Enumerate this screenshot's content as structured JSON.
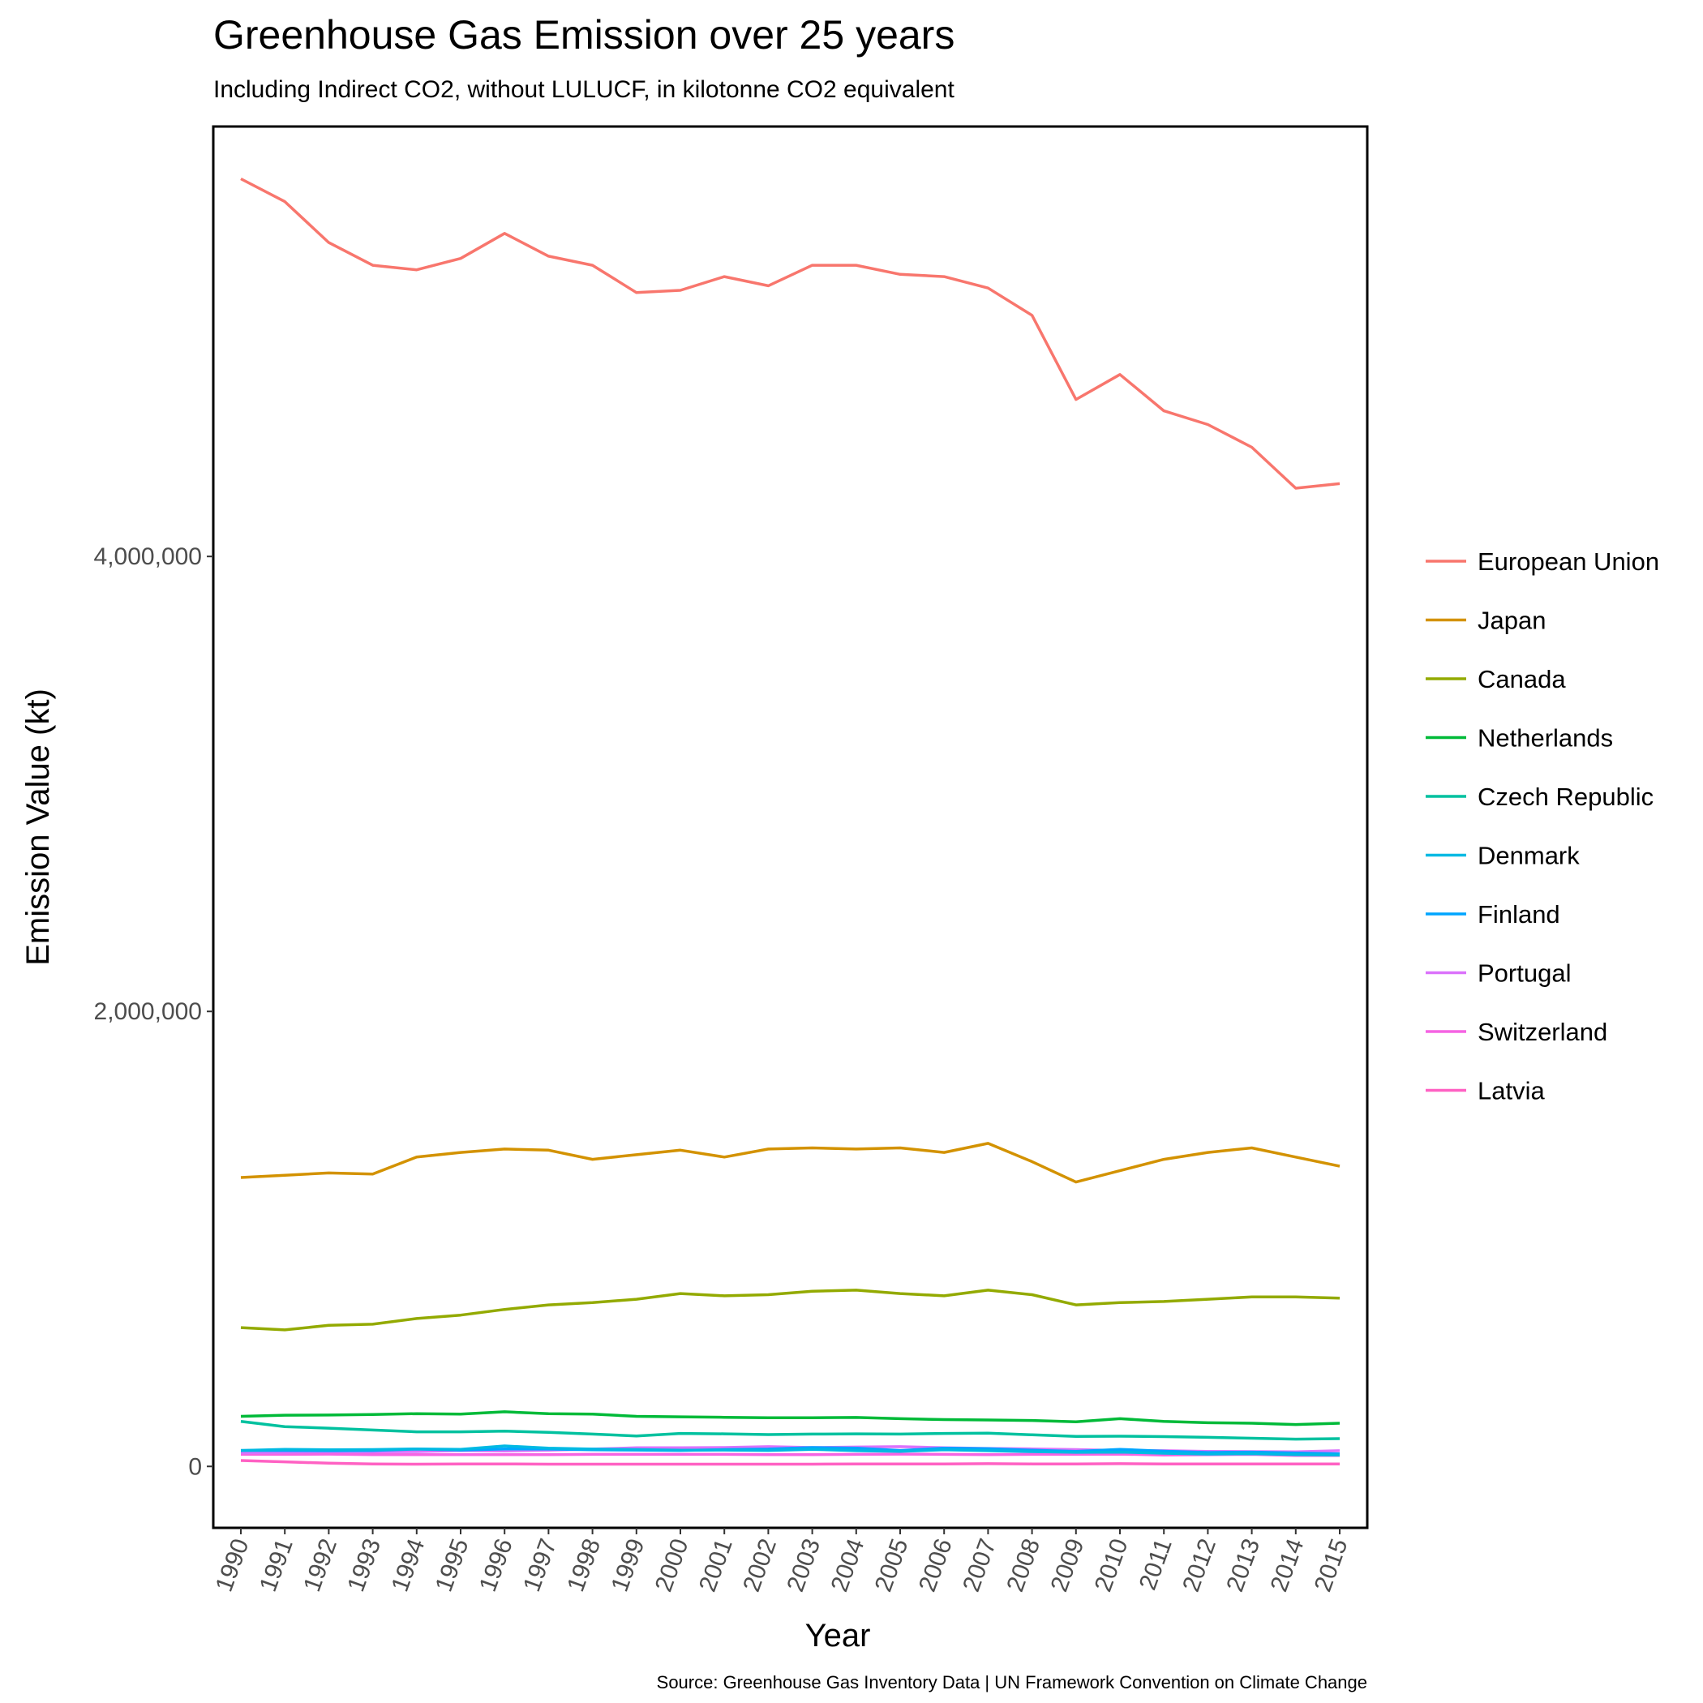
{
  "chart_data": {
    "type": "line",
    "title": "Greenhouse Gas Emission over 25 years",
    "subtitle": "Including Indirect CO2, without LULUCF, in kilotonne CO2 equivalent",
    "xlabel": "Year",
    "ylabel": "Emission Value (kt)",
    "caption": "Source: Greenhouse Gas Inventory Data | UN Framework Convention on Climate Change",
    "x": [
      "1990",
      "1991",
      "1992",
      "1993",
      "1994",
      "1995",
      "1996",
      "1997",
      "1998",
      "1999",
      "2000",
      "2001",
      "2002",
      "2003",
      "2004",
      "2005",
      "2006",
      "2007",
      "2008",
      "2009",
      "2010",
      "2011",
      "2012",
      "2013",
      "2014",
      "2015"
    ],
    "ylim": [
      -270000,
      5890000
    ],
    "yticks": [
      0,
      2000000,
      4000000
    ],
    "ytick_labels": [
      "0",
      "2,000,000",
      "4,000,000"
    ],
    "grid": false,
    "legend_position": "right",
    "series": [
      {
        "name": "European Union",
        "color": "#F8766D",
        "values": [
          5660000,
          5560000,
          5380000,
          5280000,
          5260000,
          5310000,
          5420000,
          5320000,
          5280000,
          5160000,
          5170000,
          5230000,
          5190000,
          5280000,
          5280000,
          5240000,
          5230000,
          5180000,
          5060000,
          4690000,
          4800000,
          4640000,
          4580000,
          4480000,
          4300000,
          4320000
        ]
      },
      {
        "name": "Japan",
        "color": "#D39200",
        "values": [
          1270000,
          1280000,
          1290000,
          1285000,
          1360000,
          1380000,
          1395000,
          1390000,
          1350000,
          1370000,
          1390000,
          1360000,
          1395000,
          1400000,
          1395000,
          1400000,
          1380000,
          1420000,
          1340000,
          1250000,
          1300000,
          1350000,
          1380000,
          1400000,
          1360000,
          1320000
        ]
      },
      {
        "name": "Canada",
        "color": "#93AA00",
        "values": [
          610000,
          600000,
          620000,
          625000,
          650000,
          665000,
          690000,
          710000,
          720000,
          735000,
          760000,
          750000,
          755000,
          770000,
          775000,
          760000,
          750000,
          775000,
          755000,
          710000,
          720000,
          725000,
          735000,
          745000,
          745000,
          740000
        ]
      },
      {
        "name": "Netherlands",
        "color": "#00BA38",
        "values": [
          220000,
          225000,
          226000,
          228000,
          232000,
          230000,
          240000,
          232000,
          230000,
          220000,
          218000,
          216000,
          214000,
          214000,
          215000,
          210000,
          206000,
          204000,
          202000,
          196000,
          210000,
          198000,
          192000,
          190000,
          184000,
          190000
        ]
      },
      {
        "name": "Czech Republic",
        "color": "#00C19F",
        "values": [
          198000,
          175000,
          168000,
          160000,
          152000,
          152000,
          155000,
          150000,
          142000,
          134000,
          145000,
          143000,
          140000,
          142000,
          143000,
          142000,
          145000,
          146000,
          139000,
          132000,
          133000,
          131000,
          128000,
          124000,
          120000,
          122000
        ]
      },
      {
        "name": "Denmark",
        "color": "#00B9E3",
        "values": [
          70000,
          75000,
          73000,
          74000,
          77000,
          75000,
          90000,
          80000,
          76000,
          74000,
          71000,
          72000,
          70000,
          75000,
          69000,
          66000,
          73000,
          69000,
          65000,
          62000,
          63000,
          58000,
          54000,
          56000,
          52000,
          50000
        ]
      },
      {
        "name": "Finland",
        "color": "#00A5FF",
        "values": [
          70000,
          70000,
          69000,
          70000,
          76000,
          72000,
          77000,
          76000,
          73000,
          72000,
          70000,
          74000,
          76000,
          83000,
          80000,
          70000,
          80000,
          78000,
          71000,
          66000,
          75000,
          67000,
          61000,
          63000,
          59000,
          55000
        ]
      },
      {
        "name": "Portugal",
        "color": "#DB72FB",
        "values": [
          60000,
          62000,
          65000,
          64000,
          65000,
          70000,
          68000,
          71000,
          76000,
          82000,
          82000,
          83000,
          87000,
          83000,
          85000,
          87000,
          82000,
          79000,
          77000,
          74000,
          70000,
          69000,
          66000,
          65000,
          64000,
          69000
        ]
      },
      {
        "name": "Switzerland",
        "color": "#F564E3",
        "values": [
          53000,
          53000,
          54000,
          52000,
          52000,
          52000,
          52000,
          52000,
          53000,
          53000,
          53000,
          53000,
          52000,
          52000,
          53000,
          54000,
          53000,
          52000,
          53000,
          53000,
          54000,
          50000,
          52000,
          53000,
          48000,
          48000
        ]
      },
      {
        "name": "Latvia",
        "color": "#FF61C3",
        "values": [
          26000,
          20000,
          14000,
          11000,
          10000,
          11000,
          11000,
          10000,
          10000,
          10000,
          10000,
          10000,
          10000,
          10000,
          11000,
          11000,
          11000,
          12000,
          11000,
          11000,
          12000,
          11000,
          11000,
          11000,
          11000,
          11000
        ]
      }
    ]
  }
}
